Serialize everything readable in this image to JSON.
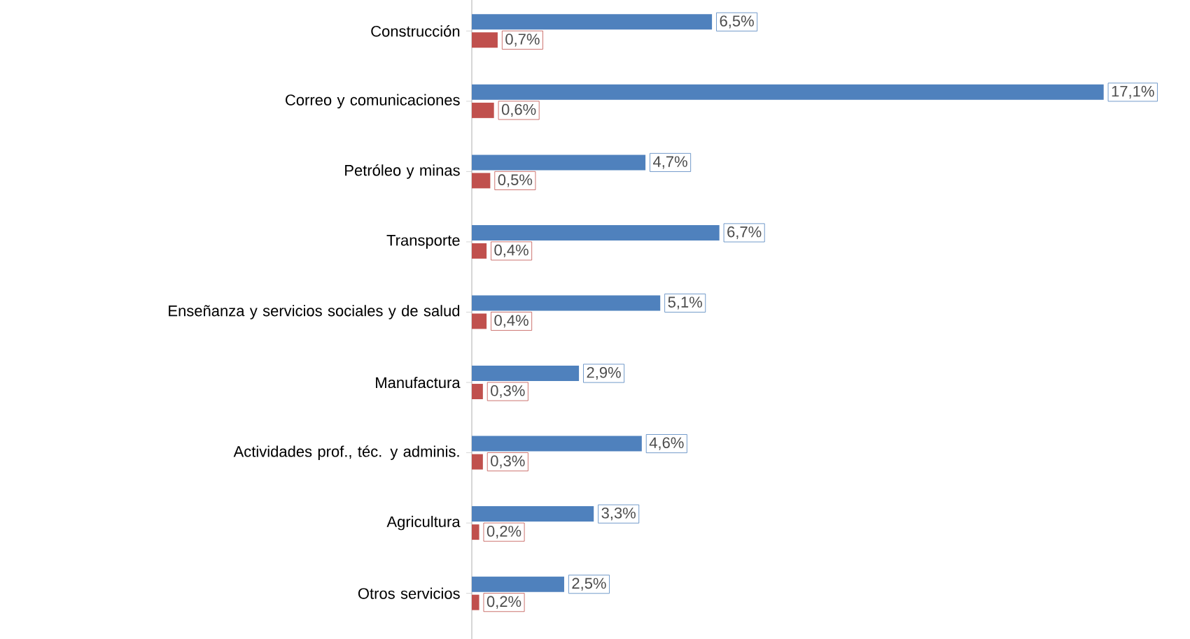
{
  "chart_data": {
    "type": "bar",
    "orientation": "horizontal",
    "tick_labels": "y",
    "categories": [
      "Construcción",
      "Correo y comunicaciones",
      "Petróleo y minas",
      "Transporte",
      "Enseñanza  y servicios sociales y de salud",
      "Manufactura",
      "Actividades prof., téc. y adminis.",
      "Agricultura",
      "Otros servicios"
    ],
    "series": [
      {
        "color": "#4f81bd",
        "values": [
          6.5,
          17.1,
          4.7,
          6.7,
          5.1,
          2.9,
          4.6,
          3.3,
          2.5
        ],
        "value_labels": [
          "6,5%",
          "17,1%",
          "4,7%",
          "6,7%",
          "5,1%",
          "2,9%",
          "4,6%",
          "3,3%",
          "2,5%"
        ]
      },
      {
        "color": "#c0504d",
        "values": [
          0.7,
          0.6,
          0.5,
          0.4,
          0.4,
          0.3,
          0.3,
          0.2,
          0.2
        ],
        "value_labels": [
          "0,7%",
          "0,6%",
          "0,5%",
          "0,4%",
          "0,4%",
          "0,3%",
          "0,3%",
          "0,2%",
          "0,2%"
        ]
      }
    ]
  }
}
